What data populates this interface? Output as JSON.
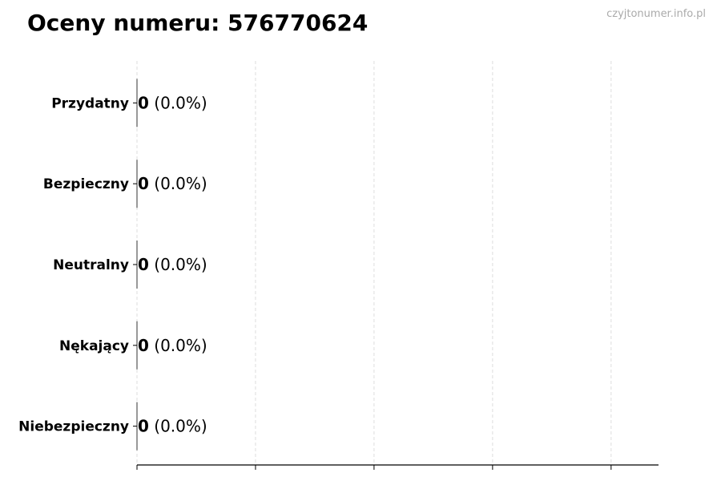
{
  "header": {
    "title": "Oceny numeru: 576770624",
    "watermark": "czyjtonumer.info.pl"
  },
  "chart_data": {
    "type": "bar",
    "orientation": "horizontal",
    "title": "Oceny numeru: 576770624",
    "categories": [
      "Przydatny",
      "Bezpieczny",
      "Neutralny",
      "Nękający",
      "Niebezpieczny"
    ],
    "values": [
      0,
      0,
      0,
      0,
      0
    ],
    "labels": [
      "(0.0%)",
      "(0.0%)",
      "(0.0%)",
      "(0.0%)",
      "(0.0%)"
    ],
    "xlim": [
      0,
      4.4
    ],
    "xticks": [
      0,
      1,
      2,
      3,
      4
    ],
    "xtick_labels": false,
    "grid": "x dashed",
    "legend": "none",
    "colors": {
      "grid": "#dddddd",
      "axis": "#000000",
      "bar_edge": "#333333"
    }
  }
}
